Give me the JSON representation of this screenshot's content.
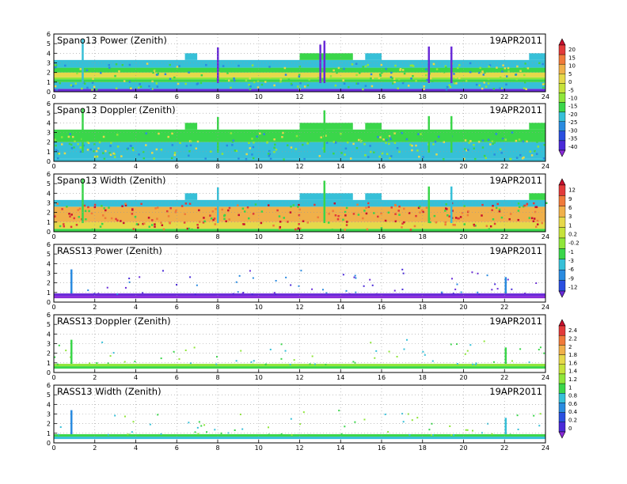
{
  "chart_data": [
    {
      "type": "heatmap",
      "title": "Spano13 Power (Zenith)",
      "date": "19APR2011",
      "xlim": [
        0,
        24
      ],
      "ylim": [
        0,
        6
      ],
      "xticks": [
        "0",
        "2",
        "4",
        "6",
        "8",
        "10",
        "12",
        "14",
        "16",
        "18",
        "20",
        "22",
        "24"
      ],
      "yticks": [
        "0",
        "1",
        "2",
        "3",
        "4",
        "5",
        "6"
      ],
      "grid": true,
      "bands": [
        {
          "y0": 0.0,
          "y1": 0.3,
          "color": "#6a2bd8"
        },
        {
          "y0": 0.3,
          "y1": 1.0,
          "color": "#36c0d8"
        },
        {
          "y0": 1.0,
          "y1": 1.3,
          "color": "#3ad64a"
        },
        {
          "y0": 1.3,
          "y1": 1.5,
          "color": "#8fe63a"
        },
        {
          "y0": 1.5,
          "y1": 2.0,
          "color": "#e6d84a"
        },
        {
          "y0": 2.0,
          "y1": 2.5,
          "color": "#3ad64a"
        },
        {
          "y0": 2.5,
          "y1": 3.3,
          "color": "#36c0d8"
        }
      ],
      "tops": [
        {
          "x0": 6.4,
          "x1": 7.0,
          "y1": 4.0,
          "color": "#36c0d8"
        },
        {
          "x0": 12.0,
          "x1": 14.6,
          "y1": 4.0,
          "color": "#3ad64a"
        },
        {
          "x0": 15.2,
          "x1": 16.0,
          "y1": 4.0,
          "color": "#36c0d8"
        },
        {
          "x0": 23.2,
          "x1": 24.0,
          "y1": 4.0,
          "color": "#36c0d8"
        }
      ],
      "spikes": [
        {
          "x": 1.4,
          "y1": 5.5,
          "color": "#36c0d8"
        },
        {
          "x": 8.0,
          "y1": 4.6,
          "color": "#6a2bd8"
        },
        {
          "x": 13.0,
          "y1": 4.9,
          "color": "#6a2bd8"
        },
        {
          "x": 13.2,
          "y1": 5.3,
          "color": "#6a2bd8"
        },
        {
          "x": 18.3,
          "y1": 4.7,
          "color": "#6a2bd8"
        },
        {
          "x": 19.4,
          "y1": 4.7,
          "color": "#6a2bd8"
        }
      ],
      "colorbar": {
        "labels": [
          "20",
          "15",
          "10",
          "5",
          "0",
          "-5",
          "-10",
          "-15",
          "-20",
          "-25",
          "-30",
          "-35",
          "-40"
        ],
        "colors": [
          "#c8102e",
          "#e23a3a",
          "#f07a3a",
          "#f0b04a",
          "#e6d84a",
          "#c6e23a",
          "#8fe63a",
          "#3ad64a",
          "#36c0d8",
          "#2a8be0",
          "#2a4fe0",
          "#4a2ad8",
          "#8a2ad8"
        ]
      }
    },
    {
      "type": "heatmap",
      "title": "Spano13 Doppler (Zenith)",
      "date": "19APR2011",
      "xlim": [
        0,
        24
      ],
      "ylim": [
        0,
        6
      ],
      "xticks": [
        "0",
        "2",
        "4",
        "6",
        "8",
        "10",
        "12",
        "14",
        "16",
        "18",
        "20",
        "22",
        "24"
      ],
      "yticks": [
        "0",
        "1",
        "2",
        "3",
        "4",
        "5",
        "6"
      ],
      "grid": true,
      "bands": [
        {
          "y0": 0.0,
          "y1": 0.3,
          "color": "#36c0d8"
        },
        {
          "y0": 0.3,
          "y1": 2.0,
          "color": "#36c0d8"
        },
        {
          "y0": 2.0,
          "y1": 3.3,
          "color": "#3ad64a"
        }
      ],
      "tops": [
        {
          "x0": 6.4,
          "x1": 7.0,
          "y1": 4.0,
          "color": "#3ad64a"
        },
        {
          "x0": 12.0,
          "x1": 14.6,
          "y1": 4.0,
          "color": "#3ad64a"
        },
        {
          "x0": 15.2,
          "x1": 16.0,
          "y1": 4.0,
          "color": "#3ad64a"
        },
        {
          "x0": 23.2,
          "x1": 24.0,
          "y1": 4.0,
          "color": "#3ad64a"
        }
      ],
      "spikes": [
        {
          "x": 1.4,
          "y1": 5.5,
          "color": "#3ad64a"
        },
        {
          "x": 8.0,
          "y1": 4.6,
          "color": "#3ad64a"
        },
        {
          "x": 13.2,
          "y1": 5.3,
          "color": "#3ad64a"
        },
        {
          "x": 18.3,
          "y1": 4.7,
          "color": "#3ad64a"
        },
        {
          "x": 19.4,
          "y1": 4.7,
          "color": "#3ad64a"
        }
      ],
      "colorbar": null
    },
    {
      "type": "heatmap",
      "title": "Spano13 Width (Zenith)",
      "date": "19APR2011",
      "xlim": [
        0,
        24
      ],
      "ylim": [
        0,
        6
      ],
      "xticks": [
        "0",
        "2",
        "4",
        "6",
        "8",
        "10",
        "12",
        "14",
        "16",
        "18",
        "20",
        "22",
        "24"
      ],
      "yticks": [
        "0",
        "1",
        "2",
        "3",
        "4",
        "5",
        "6"
      ],
      "grid": true,
      "bands": [
        {
          "y0": 0.0,
          "y1": 0.3,
          "color": "#3ad64a"
        },
        {
          "y0": 0.3,
          "y1": 1.0,
          "color": "#e6d84a"
        },
        {
          "y0": 1.0,
          "y1": 2.6,
          "color": "#f0b04a"
        },
        {
          "y0": 2.6,
          "y1": 3.3,
          "color": "#36c0d8"
        }
      ],
      "tops": [
        {
          "x0": 6.4,
          "x1": 7.0,
          "y1": 4.0,
          "color": "#36c0d8"
        },
        {
          "x0": 12.0,
          "x1": 14.6,
          "y1": 4.0,
          "color": "#36c0d8"
        },
        {
          "x0": 15.2,
          "x1": 16.0,
          "y1": 4.0,
          "color": "#36c0d8"
        },
        {
          "x0": 23.2,
          "x1": 24.0,
          "y1": 4.0,
          "color": "#3ad64a"
        }
      ],
      "spikes": [
        {
          "x": 1.4,
          "y1": 5.5,
          "color": "#3ad64a"
        },
        {
          "x": 8.0,
          "y1": 4.6,
          "color": "#36c0d8"
        },
        {
          "x": 13.2,
          "y1": 5.3,
          "color": "#3ad64a"
        },
        {
          "x": 18.3,
          "y1": 4.7,
          "color": "#3ad64a"
        },
        {
          "x": 19.4,
          "y1": 4.7,
          "color": "#36c0d8"
        }
      ],
      "colorbar": {
        "labels": [
          "12",
          "9",
          "6",
          "3",
          "1",
          "0.2",
          "-0.2",
          "-1",
          "-3",
          "-6",
          "-9",
          "-12"
        ],
        "colors": [
          "#c8102e",
          "#e23a3a",
          "#f07a3a",
          "#f0b04a",
          "#e6d84a",
          "#c6e23a",
          "#8fe63a",
          "#3ad64a",
          "#36c0d8",
          "#2a8be0",
          "#2a4fe0",
          "#6a2bd8"
        ]
      }
    },
    {
      "type": "heatmap",
      "title": "RASS13 Power (Zenith)",
      "date": "19APR2011",
      "xlim": [
        0,
        24
      ],
      "ylim": [
        0,
        6
      ],
      "xticks": [
        "0",
        "2",
        "4",
        "6",
        "8",
        "10",
        "12",
        "14",
        "16",
        "18",
        "20",
        "22",
        "24"
      ],
      "yticks": [
        "0",
        "1",
        "2",
        "3",
        "4",
        "5",
        "6"
      ],
      "grid": true,
      "bands": [
        {
          "y0": 0.4,
          "y1": 0.65,
          "color": "#8a2ad8"
        },
        {
          "y0": 0.65,
          "y1": 0.9,
          "color": "#6a2bd8"
        }
      ],
      "tops": [],
      "spikes": [
        {
          "x": 0.85,
          "y1": 3.4,
          "color": "#2a8be0"
        },
        {
          "x": 22.05,
          "y1": 2.6,
          "color": "#2a8be0"
        }
      ],
      "colorbar": null
    },
    {
      "type": "heatmap",
      "title": "RASS13 Doppler (Zenith)",
      "date": "19APR2011",
      "xlim": [
        0,
        24
      ],
      "ylim": [
        0,
        6
      ],
      "xticks": [
        "0",
        "2",
        "4",
        "6",
        "8",
        "10",
        "12",
        "14",
        "16",
        "18",
        "20",
        "22",
        "24"
      ],
      "yticks": [
        "0",
        "1",
        "2",
        "3",
        "4",
        "5",
        "6"
      ],
      "grid": true,
      "bands": [
        {
          "y0": 0.4,
          "y1": 0.65,
          "color": "#3ad64a"
        },
        {
          "y0": 0.65,
          "y1": 0.9,
          "color": "#8fe63a"
        }
      ],
      "tops": [],
      "spikes": [
        {
          "x": 0.85,
          "y1": 3.4,
          "color": "#3ad64a"
        },
        {
          "x": 22.05,
          "y1": 2.6,
          "color": "#3ad64a"
        }
      ],
      "colorbar": {
        "labels": [
          "2.4",
          "2.2",
          "2",
          "1.8",
          "1.6",
          "1.4",
          "1.2",
          "1",
          "0.8",
          "0.6",
          "0.4",
          "0.2",
          "0"
        ],
        "colors": [
          "#c8102e",
          "#e23a3a",
          "#f07a3a",
          "#f0b04a",
          "#e6d84a",
          "#c6e23a",
          "#8fe63a",
          "#3ad64a",
          "#36c0d8",
          "#2a8be0",
          "#2a4fe0",
          "#4a2ad8",
          "#8a2ad8"
        ]
      }
    },
    {
      "type": "heatmap",
      "title": "RASS13 Width (Zenith)",
      "date": "19APR2011",
      "xlim": [
        0,
        24
      ],
      "ylim": [
        0,
        6
      ],
      "xticks": [
        "0",
        "2",
        "4",
        "6",
        "8",
        "10",
        "12",
        "14",
        "16",
        "18",
        "20",
        "22",
        "24"
      ],
      "yticks": [
        "0",
        "1",
        "2",
        "3",
        "4",
        "5",
        "6"
      ],
      "grid": true,
      "bands": [
        {
          "y0": 0.4,
          "y1": 0.65,
          "color": "#36c0d8"
        },
        {
          "y0": 0.65,
          "y1": 0.9,
          "color": "#3ad64a"
        }
      ],
      "tops": [],
      "spikes": [
        {
          "x": 0.85,
          "y1": 3.4,
          "color": "#2a8be0"
        },
        {
          "x": 22.05,
          "y1": 2.6,
          "color": "#36c0d8"
        }
      ],
      "colorbar": null
    }
  ]
}
